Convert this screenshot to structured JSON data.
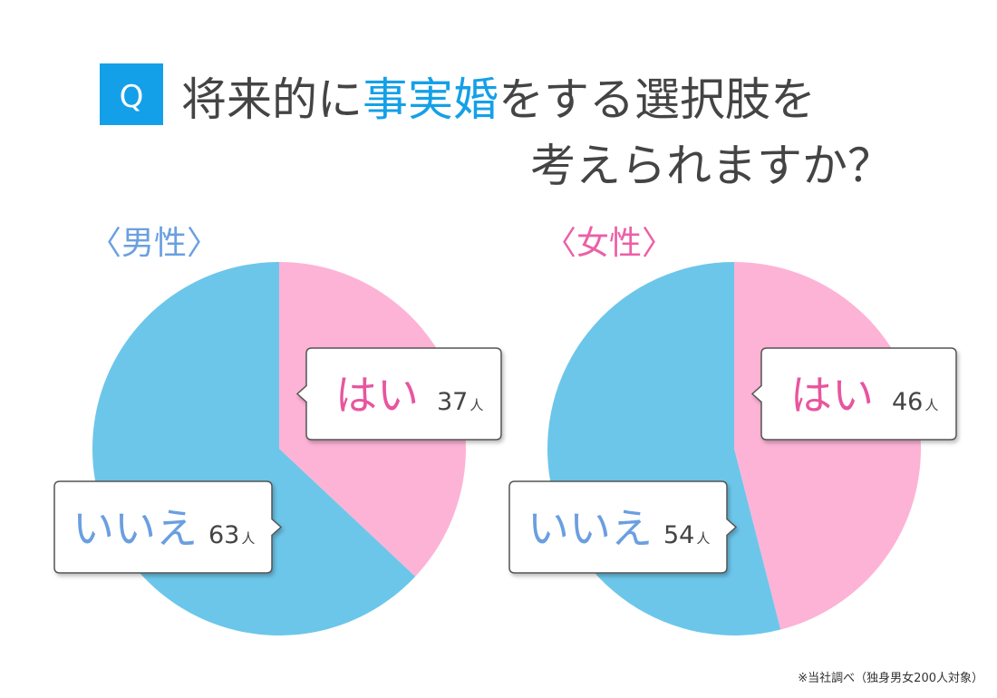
{
  "badge": "Q",
  "title": {
    "line1": [
      "将来的に",
      "事実婚",
      "をする選択肢を"
    ],
    "line2": "考えられますか？"
  },
  "footnote": "※当社調べ（独身男女200人対象）",
  "chart_data": [
    {
      "type": "pie",
      "title": "〈男性〉",
      "title_color": "#6aa0e0",
      "categories": [
        "はい",
        "いいえ"
      ],
      "values": [
        37,
        63
      ],
      "unit": "人",
      "colors": [
        "#fdb3d6",
        "#6cc6ea"
      ],
      "label_colors": [
        "#e8559f",
        "#6a9fe0"
      ]
    },
    {
      "type": "pie",
      "title": "〈女性〉",
      "title_color": "#ec5fa6",
      "categories": [
        "はい",
        "いいえ"
      ],
      "values": [
        46,
        54
      ],
      "unit": "人",
      "colors": [
        "#fdb3d6",
        "#6cc6ea"
      ],
      "label_colors": [
        "#e8559f",
        "#6a9fe0"
      ]
    }
  ]
}
